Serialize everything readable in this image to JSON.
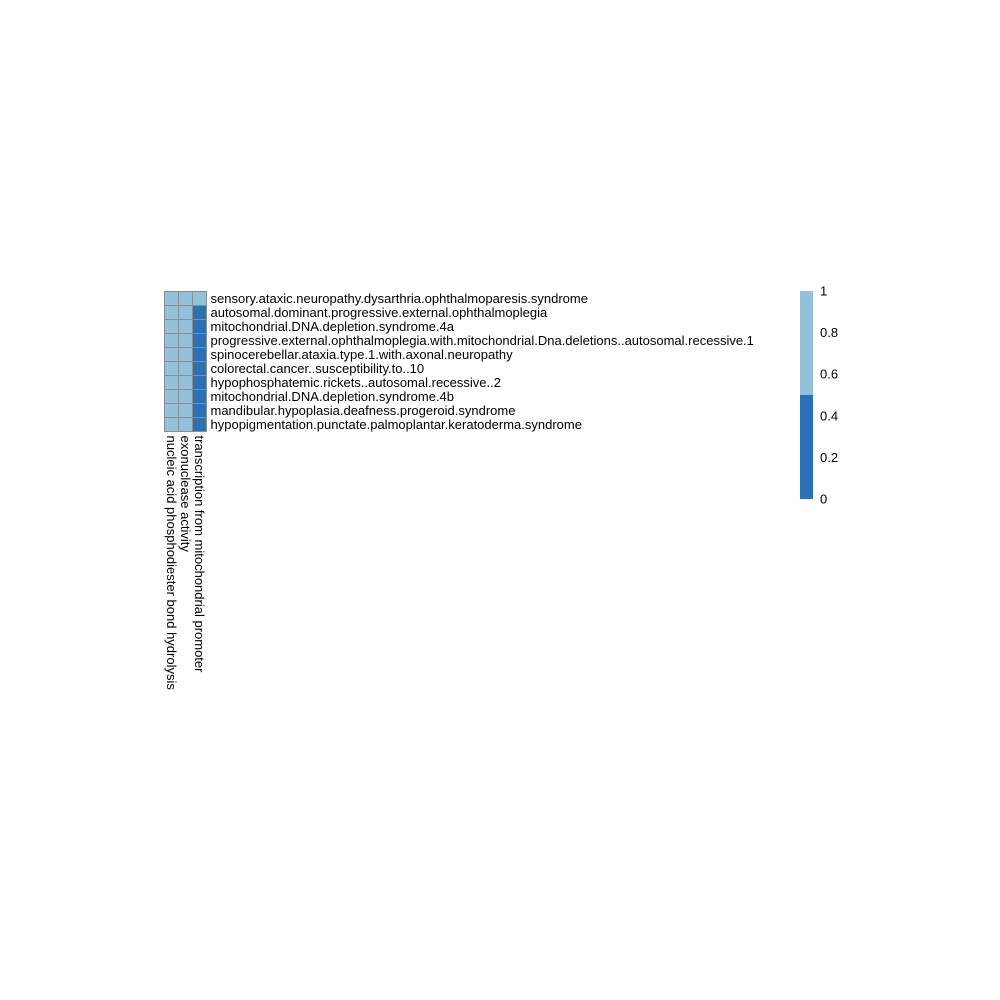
{
  "chart_data": {
    "type": "heatmap",
    "rows": [
      "sensory.ataxic.neuropathy.dysarthria.ophthalmoparesis.syndrome",
      "autosomal.dominant.progressive.external.ophthalmoplegia",
      "mitochondrial.DNA.depletion.syndrome.4a",
      "progressive.external.ophthalmoplegia.with.mitochondrial.Dna.deletions..autosomal.recessive.1",
      "spinocerebellar.ataxia.type.1.with.axonal.neuropathy",
      "colorectal.cancer..susceptibility.to..10",
      "hypophosphatemic.rickets..autosomal.recessive..2",
      "mitochondrial.DNA.depletion.syndrome.4b",
      "mandibular.hypoplasia.deafness.progeroid.syndrome",
      "hypopigmentation.punctate.palmoplantar.keratoderma.syndrome"
    ],
    "columns": [
      "nucleic acid phosphodiester bond hydrolysis",
      "exonuclease activity",
      "transcription from mitochondrial promoter"
    ],
    "values": [
      [
        1,
        1,
        1
      ],
      [
        1,
        1,
        0
      ],
      [
        1,
        1,
        0
      ],
      [
        1,
        1,
        0
      ],
      [
        1,
        1,
        0
      ],
      [
        1,
        1,
        0
      ],
      [
        1,
        1,
        0
      ],
      [
        1,
        1,
        0
      ],
      [
        1,
        1,
        0
      ],
      [
        1,
        1,
        0
      ]
    ],
    "colors": {
      "high": "#92c1dc",
      "low": "#2a71b6",
      "grid": "#8c8c8c"
    },
    "legend": {
      "ticks": [
        "0",
        "0.2",
        "0.4",
        "0.6",
        "0.8",
        "1"
      ],
      "range": [
        0,
        1
      ],
      "split": 0.5,
      "placement": "right"
    }
  }
}
